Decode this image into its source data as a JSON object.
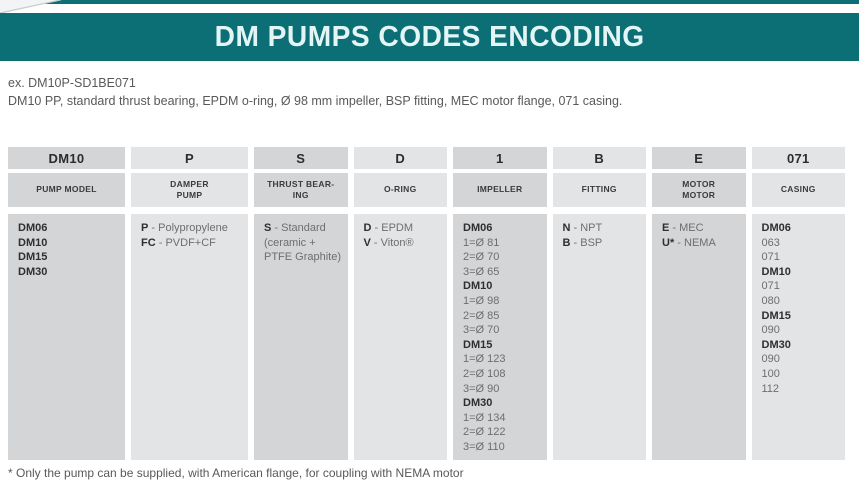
{
  "header": {
    "title": "DM PUMPS CODES ENCODING"
  },
  "example": {
    "code_line": "ex. DM10P-SD1BE071",
    "description": "DM10 PP, standard thrust bearing, EPDM o-ring, Ø 98 mm impeller, BSP fitting, MEC motor flange, 071 casing."
  },
  "table": {
    "columns": [
      {
        "id": "pump-model",
        "code": "DM10",
        "label": "PUMP MODEL",
        "lines": [
          {
            "b": "DM06"
          },
          {
            "b": "DM10"
          },
          {
            "b": "DM15"
          },
          {
            "b": "DM30"
          }
        ]
      },
      {
        "id": "damper-pump",
        "code": "P",
        "label": "DAMPER\nPUMP",
        "lines": [
          {
            "b": "P",
            "t": " - Polypropylene"
          },
          {
            "b": "FC",
            "t": " - PVDF+CF"
          }
        ]
      },
      {
        "id": "thrust-bearing",
        "code": "S",
        "label": "THRUST BEAR-\nING",
        "lines": [
          {
            "b": "S",
            "t": " - Standard"
          },
          {
            "t": "(ceramic +"
          },
          {
            "t": "PTFE Graphite)"
          }
        ]
      },
      {
        "id": "o-ring",
        "code": "D",
        "label": "O-RING",
        "lines": [
          {
            "b": "D",
            "t": " - EPDM"
          },
          {
            "b": "V",
            "t": " - Viton®"
          }
        ]
      },
      {
        "id": "impeller",
        "code": "1",
        "label": "IMPELLER",
        "lines": [
          {
            "b": "DM06"
          },
          {
            "t": "1=Ø 81"
          },
          {
            "t": "2=Ø 70"
          },
          {
            "t": "3=Ø 65"
          },
          {
            "b": "DM10"
          },
          {
            "t": "1=Ø 98"
          },
          {
            "t": "2=Ø 85"
          },
          {
            "t": "3=Ø 70"
          },
          {
            "b": "DM15"
          },
          {
            "t": "1=Ø 123"
          },
          {
            "t": "2=Ø 108"
          },
          {
            "t": "3=Ø 90"
          },
          {
            "b": "DM30"
          },
          {
            "t": "1=Ø 134"
          },
          {
            "t": "2=Ø 122"
          },
          {
            "t": "3=Ø 110"
          }
        ]
      },
      {
        "id": "fitting",
        "code": "B",
        "label": "FITTING",
        "lines": [
          {
            "b": "N",
            "t": " - NPT"
          },
          {
            "b": "B",
            "t": " - BSP"
          }
        ]
      },
      {
        "id": "motor-flange",
        "code": "E",
        "label": "MOTOR\nMOTOR",
        "lines": [
          {
            "b": "E",
            "t": " - MEC"
          },
          {
            "b": "U*",
            "t": " - NEMA"
          }
        ]
      },
      {
        "id": "casing",
        "code": "071",
        "label": "CASING",
        "lines": [
          {
            "b": "DM06"
          },
          {
            "t": "063"
          },
          {
            "t": "071"
          },
          {
            "b": "DM10"
          },
          {
            "t": "071"
          },
          {
            "t": "080"
          },
          {
            "b": "DM15"
          },
          {
            "t": "090"
          },
          {
            "b": "DM30"
          },
          {
            "t": "090"
          },
          {
            "t": "100"
          },
          {
            "t": "112"
          }
        ]
      }
    ]
  },
  "footnote": "* Only the pump can be supplied, with American flange, for coupling with NEMA motor",
  "colors": {
    "accent_teal": "#0b6f75",
    "cell_dark": "#d3d5d6",
    "cell_light": "#e3e4e5"
  }
}
